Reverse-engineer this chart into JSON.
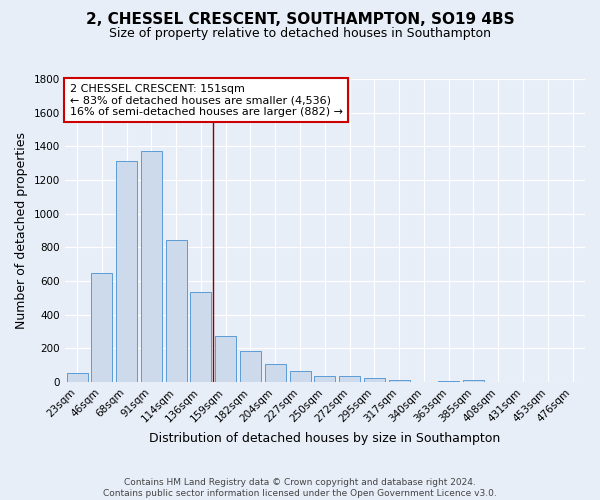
{
  "title": "2, CHESSEL CRESCENT, SOUTHAMPTON, SO19 4BS",
  "subtitle": "Size of property relative to detached houses in Southampton",
  "xlabel": "Distribution of detached houses by size in Southampton",
  "ylabel": "Number of detached properties",
  "categories": [
    "23sqm",
    "46sqm",
    "68sqm",
    "91sqm",
    "114sqm",
    "136sqm",
    "159sqm",
    "182sqm",
    "204sqm",
    "227sqm",
    "250sqm",
    "272sqm",
    "295sqm",
    "317sqm",
    "340sqm",
    "363sqm",
    "385sqm",
    "408sqm",
    "431sqm",
    "453sqm",
    "476sqm"
  ],
  "values": [
    55,
    645,
    1310,
    1375,
    845,
    535,
    275,
    185,
    105,
    65,
    35,
    35,
    25,
    12,
    0,
    5,
    12,
    0,
    0,
    0,
    0
  ],
  "bar_color": "#ccdaeb",
  "bar_edge_color": "#5b9bd5",
  "background_color": "#e8eef8",
  "grid_color": "#ffffff",
  "property_line_x": 5.5,
  "property_line_color": "#8b0000",
  "annotation_text": "2 CHESSEL CRESCENT: 151sqm\n← 83% of detached houses are smaller (4,536)\n16% of semi-detached houses are larger (882) →",
  "annotation_box_color": "#ffffff",
  "annotation_box_edge_color": "#cc0000",
  "ylim": [
    0,
    1800
  ],
  "yticks": [
    0,
    200,
    400,
    600,
    800,
    1000,
    1200,
    1400,
    1600,
    1800
  ],
  "footer_line1": "Contains HM Land Registry data © Crown copyright and database right 2024.",
  "footer_line2": "Contains public sector information licensed under the Open Government Licence v3.0.",
  "title_fontsize": 11,
  "subtitle_fontsize": 9,
  "axis_label_fontsize": 9,
  "tick_fontsize": 7.5,
  "annotation_fontsize": 8,
  "footer_fontsize": 6.5
}
